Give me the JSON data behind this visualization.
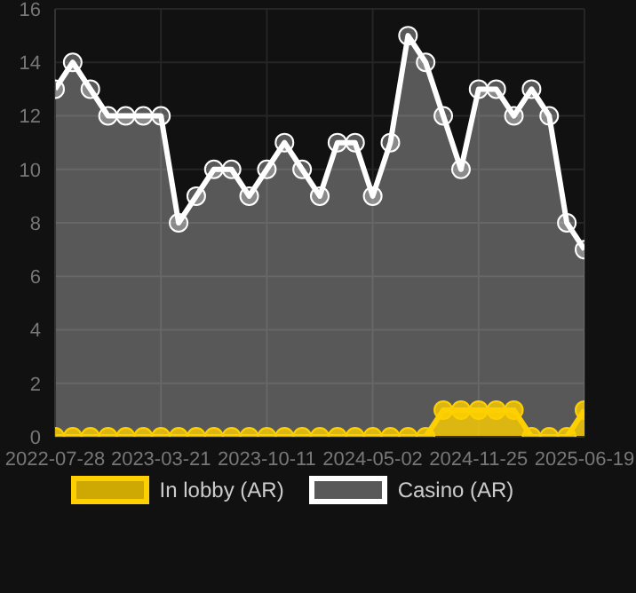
{
  "chart_data": {
    "type": "area",
    "categories": [
      "2022-07-28",
      null,
      null,
      null,
      null,
      null,
      "2023-03-21",
      null,
      null,
      null,
      null,
      null,
      "2023-10-11",
      null,
      null,
      null,
      null,
      null,
      "2024-05-02",
      null,
      null,
      null,
      null,
      null,
      "2024-11-25",
      null,
      null,
      null,
      null,
      null,
      "2025-06-19"
    ],
    "series": [
      {
        "name": "Casino (AR)",
        "color": "#ffffff",
        "values": [
          13,
          14,
          13,
          12,
          12,
          12,
          12,
          8,
          9,
          10,
          10,
          9,
          10,
          11,
          10,
          9,
          11,
          11,
          9,
          11,
          15,
          14,
          12,
          10,
          13,
          13,
          12,
          13,
          12,
          8,
          7
        ]
      },
      {
        "name": "In lobby (AR)",
        "color": "#ffd000",
        "values": [
          0,
          0,
          0,
          0,
          0,
          0,
          0,
          0,
          0,
          0,
          0,
          0,
          0,
          0,
          0,
          0,
          0,
          0,
          0,
          0,
          0,
          0,
          1,
          1,
          1,
          1,
          1,
          0,
          0,
          0,
          1
        ]
      }
    ],
    "ylim": [
      0,
      16
    ],
    "yticks": [
      0,
      2,
      4,
      6,
      8,
      10,
      12,
      14,
      16
    ],
    "grid": true,
    "legend": "bottom",
    "marker": "circle"
  }
}
